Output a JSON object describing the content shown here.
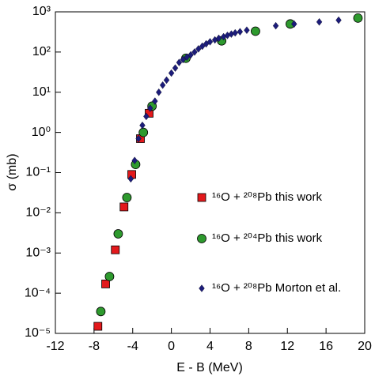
{
  "chart_data": {
    "type": "scatter",
    "xlabel": "E - B (MeV)",
    "ylabel": "σ (mb)",
    "xlim": [
      -12,
      20
    ],
    "xticks": [
      -12,
      -8,
      -4,
      0,
      4,
      8,
      12,
      16,
      20
    ],
    "ylim": [
      1e-05,
      1000
    ],
    "yscale": "log",
    "yticks": [
      {
        "value": 1e-05,
        "label": "10⁻⁵"
      },
      {
        "value": 0.0001,
        "label": "10⁻⁴"
      },
      {
        "value": 0.001,
        "label": "10⁻³"
      },
      {
        "value": 0.01,
        "label": "10⁻²"
      },
      {
        "value": 0.1,
        "label": "10⁻¹"
      },
      {
        "value": 1,
        "label": "10⁰"
      },
      {
        "value": 10,
        "label": "10¹"
      },
      {
        "value": 100,
        "label": "10²"
      },
      {
        "value": 1000,
        "label": "10³"
      }
    ],
    "series": [
      {
        "name": "¹⁶O + ²⁰⁸Pb this work",
        "color": "#e3191c",
        "marker": "square",
        "x": [
          -7.6,
          -6.8,
          -5.8,
          -4.9,
          -4.1,
          -3.2,
          -2.3
        ],
        "values": [
          1.5e-05,
          0.00017,
          0.0012,
          0.014,
          0.09,
          0.7,
          3
        ]
      },
      {
        "name": "¹⁶O + ²⁰⁴Pb this work",
        "color": "#2e9a2e",
        "marker": "circle",
        "x": [
          -7.3,
          -6.4,
          -5.5,
          -4.6,
          -3.7,
          -2.9,
          -2.0,
          1.5,
          5.2,
          8.7,
          12.3,
          19.3
        ],
        "values": [
          3.5e-05,
          0.00026,
          0.003,
          0.024,
          0.16,
          1.0,
          4.5,
          70,
          190,
          330,
          500,
          700
        ]
      },
      {
        "name": "¹⁶O + ²⁰⁸Pb Morton et al.",
        "color": "#1c1c7a",
        "marker": "diamond",
        "x": [
          -4.2,
          -3.8,
          -3.4,
          -3.0,
          -2.6,
          -2.2,
          -1.7,
          -1.3,
          -0.9,
          -0.5,
          0.0,
          0.4,
          0.8,
          1.2,
          1.6,
          2.0,
          2.4,
          2.8,
          3.2,
          3.6,
          4.0,
          4.5,
          4.9,
          5.4,
          5.8,
          6.2,
          6.6,
          7.1,
          7.8,
          10.8,
          12.7,
          15.3,
          17.3
        ],
        "values": [
          0.07,
          0.2,
          0.7,
          1.5,
          2.5,
          4,
          6,
          10,
          15,
          20,
          30,
          40,
          55,
          65,
          75,
          85,
          100,
          120,
          140,
          160,
          180,
          200,
          220,
          240,
          260,
          280,
          300,
          320,
          350,
          450,
          500,
          560,
          620
        ]
      }
    ]
  }
}
